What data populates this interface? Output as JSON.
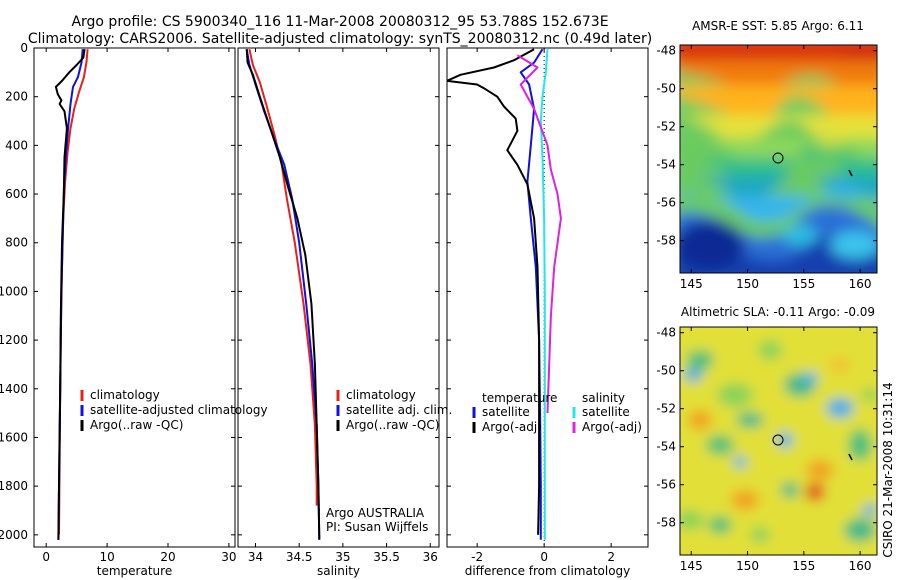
{
  "header": {
    "title_line1": "Argo profile: CS 5900340_116 11-Mar-2008 20080312_95 53.788S 152.673E",
    "title_line2": "Climatology: CARS2006. Satellite-adjusted climatology: synTS_20080312.nc (0.49d later)"
  },
  "colors": {
    "climatology": "#e8201c",
    "satellite": "#1010dd",
    "argo": "#000000",
    "salinity_satellite": "#20e8e8",
    "salinity_argo": "#e020e0"
  },
  "chart_data": [
    {
      "type": "line",
      "panel": "temperature",
      "xlabel": "temperature",
      "ylabel": "",
      "xlim": [
        -2,
        31
      ],
      "ylim": [
        2050,
        0
      ],
      "x_ticks": [
        0,
        10,
        20,
        30
      ],
      "y_ticks": [
        0,
        200,
        400,
        600,
        800,
        1000,
        1200,
        1400,
        1600,
        1800,
        2000
      ],
      "legend": [
        "climatology",
        "satellite-adjusted climatology",
        "Argo(..raw -QC)"
      ],
      "series": [
        {
          "name": "climatology",
          "color": "#e8201c",
          "points": [
            [
              6.8,
              5
            ],
            [
              6.6,
              60
            ],
            [
              6.2,
              120
            ],
            [
              5.4,
              180
            ],
            [
              4.6,
              250
            ],
            [
              4.0,
              330
            ],
            [
              3.5,
              430
            ],
            [
              3.1,
              550
            ],
            [
              2.8,
              700
            ],
            [
              2.6,
              900
            ],
            [
              2.45,
              1100
            ],
            [
              2.3,
              1400
            ],
            [
              2.2,
              1700
            ],
            [
              2.1,
              2000
            ]
          ]
        },
        {
          "name": "satellite-adjusted climatology",
          "color": "#1010dd",
          "points": [
            [
              6.0,
              5
            ],
            [
              5.8,
              60
            ],
            [
              5.2,
              120
            ],
            [
              4.4,
              160
            ],
            [
              4.0,
              230
            ],
            [
              3.6,
              330
            ],
            [
              3.2,
              450
            ],
            [
              2.9,
              600
            ],
            [
              2.7,
              800
            ],
            [
              2.5,
              1000
            ],
            [
              2.35,
              1300
            ],
            [
              2.2,
              1600
            ],
            [
              2.1,
              1800
            ],
            [
              2.0,
              2020
            ]
          ]
        },
        {
          "name": "Argo(..raw -QC)",
          "color": "#000000",
          "points": [
            [
              6.3,
              5
            ],
            [
              6.1,
              40
            ],
            [
              5.0,
              70
            ],
            [
              3.8,
              100
            ],
            [
              2.6,
              135
            ],
            [
              1.6,
              160
            ],
            [
              1.9,
              190
            ],
            [
              2.5,
              215
            ],
            [
              2.2,
              230
            ],
            [
              3.0,
              260
            ],
            [
              3.4,
              330
            ],
            [
              3.0,
              450
            ],
            [
              2.9,
              600
            ],
            [
              2.6,
              800
            ],
            [
              2.4,
              1100
            ],
            [
              2.3,
              1400
            ],
            [
              2.15,
              1700
            ],
            [
              2.05,
              1900
            ],
            [
              2.0,
              2020
            ]
          ]
        }
      ]
    },
    {
      "type": "line",
      "panel": "salinity",
      "xlabel": "salinity",
      "ylabel": "",
      "xlim": [
        33.8,
        36.1
      ],
      "ylim": [
        2050,
        0
      ],
      "x_ticks": [
        "34",
        "34.5",
        "35",
        "35.5",
        "36"
      ],
      "legend": [
        "climatology",
        "satellite adj. clim.",
        "Argo(..raw -QC)"
      ],
      "annotation": [
        "Argo AUSTRALIA",
        "PI: Susan Wijffels"
      ],
      "series": [
        {
          "name": "climatology",
          "color": "#e8201c",
          "points": [
            [
              33.93,
              5
            ],
            [
              33.97,
              70
            ],
            [
              34.05,
              140
            ],
            [
              34.13,
              240
            ],
            [
              34.22,
              360
            ],
            [
              34.3,
              480
            ],
            [
              34.36,
              620
            ],
            [
              34.45,
              800
            ],
            [
              34.55,
              1050
            ],
            [
              34.63,
              1300
            ],
            [
              34.68,
              1550
            ],
            [
              34.7,
              1800
            ],
            [
              34.7,
              1880
            ]
          ]
        },
        {
          "name": "satellite adj. clim.",
          "color": "#1010dd",
          "points": [
            [
              33.9,
              5
            ],
            [
              33.93,
              70
            ],
            [
              34.0,
              150
            ],
            [
              34.1,
              260
            ],
            [
              34.22,
              380
            ],
            [
              34.33,
              480
            ],
            [
              34.42,
              620
            ],
            [
              34.5,
              800
            ],
            [
              34.58,
              1050
            ],
            [
              34.65,
              1300
            ],
            [
              34.7,
              1550
            ],
            [
              34.72,
              1800
            ],
            [
              34.73,
              2020
            ]
          ]
        },
        {
          "name": "Argo(..raw -QC)",
          "color": "#000000",
          "points": [
            [
              33.9,
              5
            ],
            [
              33.91,
              60
            ],
            [
              33.97,
              110
            ],
            [
              34.05,
              200
            ],
            [
              34.17,
              330
            ],
            [
              34.28,
              450
            ],
            [
              34.38,
              580
            ],
            [
              34.48,
              700
            ],
            [
              34.57,
              850
            ],
            [
              34.64,
              1050
            ],
            [
              34.68,
              1300
            ],
            [
              34.7,
              1550
            ],
            [
              34.72,
              1800
            ],
            [
              34.73,
              2020
            ]
          ]
        }
      ]
    },
    {
      "type": "line",
      "panel": "difference",
      "xlabel": "difference from climatology",
      "ylabel": "",
      "xlim": [
        -2.9,
        3.1
      ],
      "ylim": [
        2050,
        0
      ],
      "x_ticks": [
        -2,
        0,
        2
      ],
      "zero_line": true,
      "legend_left": {
        "title": "temperature",
        "items": [
          "satellite",
          "Argo(-adj)"
        ]
      },
      "legend_right": {
        "title": "salinity",
        "items": [
          "satellite",
          "Argo(-adj)"
        ]
      },
      "series": [
        {
          "name": "temperature satellite",
          "color": "#1010dd",
          "points": [
            [
              -0.05,
              5
            ],
            [
              -0.3,
              60
            ],
            [
              -0.7,
              100
            ],
            [
              -0.45,
              150
            ],
            [
              -0.3,
              250
            ],
            [
              -0.4,
              400
            ],
            [
              -0.5,
              550
            ],
            [
              -0.4,
              700
            ],
            [
              -0.25,
              900
            ],
            [
              -0.15,
              1200
            ],
            [
              -0.12,
              1500
            ],
            [
              -0.1,
              1800
            ],
            [
              -0.1,
              2020
            ]
          ]
        },
        {
          "name": "temperature Argo(-adj)",
          "color": "#000000",
          "points": [
            [
              -0.3,
              5
            ],
            [
              -0.9,
              50
            ],
            [
              -1.5,
              80
            ],
            [
              -2.5,
              110
            ],
            [
              -2.9,
              135
            ],
            [
              -2.0,
              150
            ],
            [
              -1.8,
              165
            ],
            [
              -1.4,
              200
            ],
            [
              -1.2,
              240
            ],
            [
              -0.85,
              290
            ],
            [
              -0.8,
              340
            ],
            [
              -1.1,
              420
            ],
            [
              -0.8,
              480
            ],
            [
              -0.5,
              560
            ],
            [
              -0.3,
              700
            ],
            [
              -0.2,
              900
            ],
            [
              -0.15,
              1200
            ],
            [
              -0.15,
              1500
            ],
            [
              -0.15,
              1800
            ],
            [
              -0.18,
              2000
            ]
          ]
        },
        {
          "name": "salinity satellite",
          "color": "#20e8e8",
          "points": [
            [
              0.1,
              5
            ],
            [
              0.05,
              100
            ],
            [
              -0.05,
              200
            ],
            [
              -0.1,
              300
            ],
            [
              -0.05,
              450
            ],
            [
              0.0,
              700
            ],
            [
              0.02,
              1000
            ],
            [
              0.02,
              1400
            ],
            [
              0.02,
              1800
            ],
            [
              0.02,
              2020
            ]
          ]
        },
        {
          "name": "salinity Argo(-adj)",
          "color": "#e020e0",
          "points": [
            [
              -0.8,
              30
            ],
            [
              -0.2,
              80
            ],
            [
              -0.7,
              150
            ],
            [
              -0.3,
              250
            ],
            [
              0.1,
              400
            ],
            [
              0.2,
              500
            ],
            [
              0.4,
              600
            ],
            [
              0.5,
              700
            ],
            [
              0.3,
              900
            ],
            [
              0.2,
              1100
            ],
            [
              0.15,
              1300
            ],
            [
              0.1,
              1500
            ]
          ]
        }
      ]
    },
    {
      "type": "heatmap",
      "panel": "sst-map",
      "title": "AMSR-E SST: 5.85  Argo: 6.11",
      "xlim": [
        144,
        161.5
      ],
      "ylim": [
        -59.7,
        -47.7
      ],
      "x_ticks": [
        145,
        150,
        155,
        160
      ],
      "y_ticks": [
        -48,
        -50,
        -52,
        -54,
        -56,
        -58
      ],
      "marker": [
        152.673,
        -53.788
      ]
    },
    {
      "type": "heatmap",
      "panel": "sla-map",
      "title": "Altimetric SLA: -0.11  Argo: -0.09",
      "xlim": [
        144,
        161.5
      ],
      "ylim": [
        -59.7,
        -47.7
      ],
      "x_ticks": [
        145,
        150,
        155,
        160
      ],
      "y_ticks": [
        -48,
        -50,
        -52,
        -54,
        -56,
        -58
      ],
      "marker": [
        152.673,
        -53.788
      ]
    }
  ],
  "side_note": "CSIRO 21-Mar-2008 10:31:14"
}
